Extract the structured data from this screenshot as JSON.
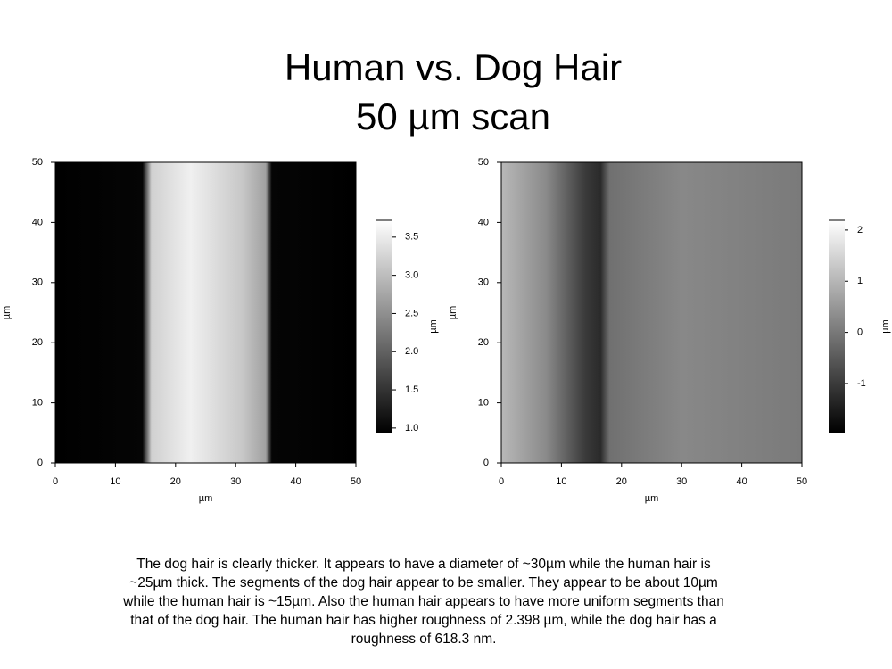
{
  "title": [
    "Human vs. Dog Hair",
    "50 µm scan"
  ],
  "chart_data": [
    {
      "type": "image",
      "xlabel": "µm",
      "ylabel": "µm",
      "colorbar_label": "µm",
      "xlim": [
        0,
        50
      ],
      "xticks": [
        0,
        10,
        20,
        30,
        40,
        50
      ],
      "ylim": [
        0,
        50
      ],
      "yticks": [
        0,
        10,
        20,
        30,
        40,
        50
      ],
      "clim": [
        0.94,
        3.72
      ],
      "cticks": [
        {
          "value": 1,
          "label": "1.0"
        },
        1.5,
        {
          "value": 2,
          "label": "2.0"
        },
        2.5,
        {
          "value": 3,
          "label": "3.0"
        },
        3.5
      ]
    },
    {
      "type": "image",
      "xlabel": "µm",
      "ylabel": "µm",
      "colorbar_label": "µm",
      "xlim": [
        0,
        50
      ],
      "xticks": [
        0,
        10,
        20,
        30,
        40,
        50
      ],
      "ylim": [
        0,
        50
      ],
      "yticks": [
        0,
        10,
        20,
        30,
        40,
        50
      ],
      "clim": [
        -1.96,
        2.19
      ],
      "cticks": [
        -1,
        0,
        1,
        2
      ]
    }
  ],
  "caption": "The dog hair is clearly thicker. It appears to have a diameter of ~30µm while the human hair is ~25µm thick. The segments of the dog hair appear to be smaller. They appear to be about 10µm while the human hair is ~15µm. Also the human hair appears to have more uniform segments than that of the dog hair. The human hair has higher roughness of 2.398 µm, while the dog hair has a roughness of 618.3 nm."
}
